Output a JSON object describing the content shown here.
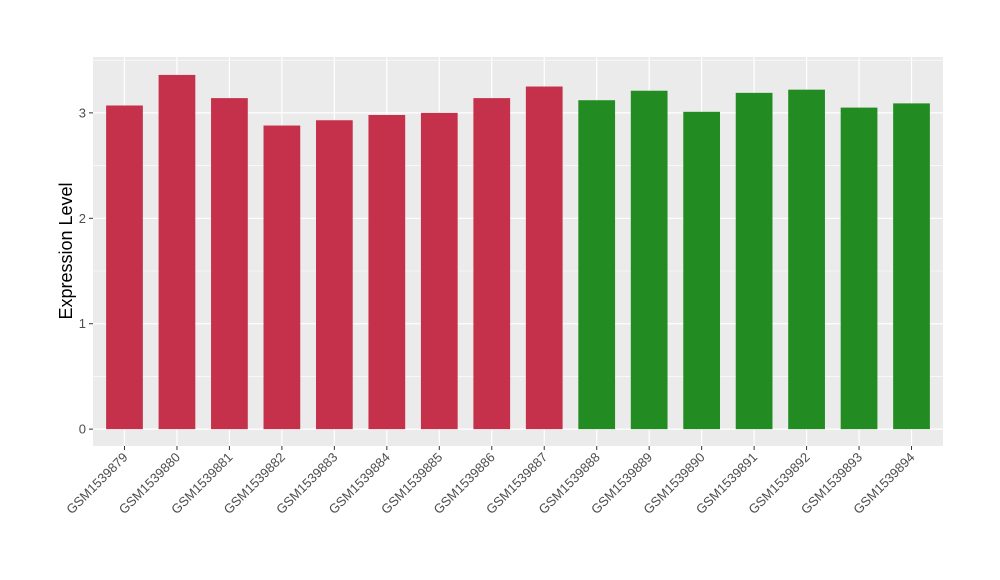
{
  "chart_data": {
    "type": "bar",
    "ylabel": "Expression Level",
    "xlabel": "",
    "ylim": [
      -0.16,
      3.53
    ],
    "yticks": [
      0,
      1,
      2,
      3
    ],
    "grid": true,
    "panel_background": "#ebebeb",
    "grid_color": "#ffffff",
    "categories": [
      "GSM1539879",
      "GSM1539880",
      "GSM1539881",
      "GSM1539882",
      "GSM1539883",
      "GSM1539884",
      "GSM1539885",
      "GSM1539886",
      "GSM1539887",
      "GSM1539888",
      "GSM1539889",
      "GSM1539890",
      "GSM1539891",
      "GSM1539892",
      "GSM1539893",
      "GSM1539894"
    ],
    "values": [
      3.07,
      3.36,
      3.14,
      2.88,
      2.93,
      2.98,
      3.0,
      3.14,
      3.25,
      3.12,
      3.21,
      3.01,
      3.19,
      3.22,
      3.05,
      3.09
    ],
    "bar_colors": [
      "#c5314a",
      "#c5314a",
      "#c5314a",
      "#c5314a",
      "#c5314a",
      "#c5314a",
      "#c5314a",
      "#c5314a",
      "#c5314a",
      "#228b22",
      "#228b22",
      "#228b22",
      "#228b22",
      "#228b22",
      "#228b22",
      "#228b22"
    ]
  }
}
